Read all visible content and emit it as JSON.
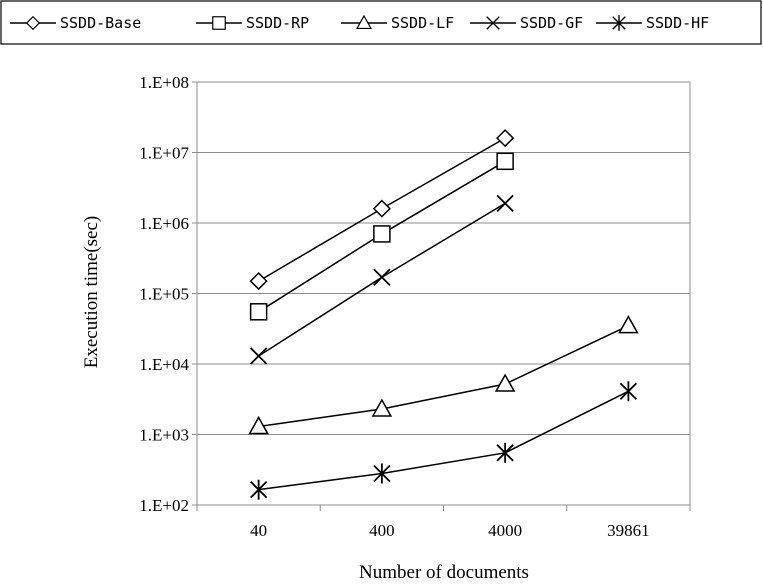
{
  "chart_data": {
    "type": "line",
    "xlabel": "Number of documents",
    "ylabel": "Execution time(sec)",
    "y_scale": "log",
    "ylim": [
      100,
      100000000
    ],
    "y_ticks": [
      "1.E+02",
      "1.E+03",
      "1.E+04",
      "1.E+05",
      "1.E+06",
      "1.E+07",
      "1.E+08"
    ],
    "grid": true,
    "legend_position": "top",
    "categories": [
      "40",
      "400",
      "4000",
      "39861"
    ],
    "series": [
      {
        "name": "SSDD-Base",
        "marker": "diamond",
        "values": [
          150000,
          1600000,
          16000000,
          null
        ]
      },
      {
        "name": "SSDD-RP",
        "marker": "square",
        "values": [
          55000,
          700000,
          7500000,
          null
        ]
      },
      {
        "name": "SSDD-LF",
        "marker": "triangle",
        "values": [
          1300,
          2300,
          5200,
          35000
        ]
      },
      {
        "name": "SSDD-GF",
        "marker": "x",
        "values": [
          13000,
          170000,
          1900000,
          null
        ]
      },
      {
        "name": "SSDD-HF",
        "marker": "star",
        "values": [
          165,
          280,
          550,
          4100
        ]
      }
    ]
  }
}
